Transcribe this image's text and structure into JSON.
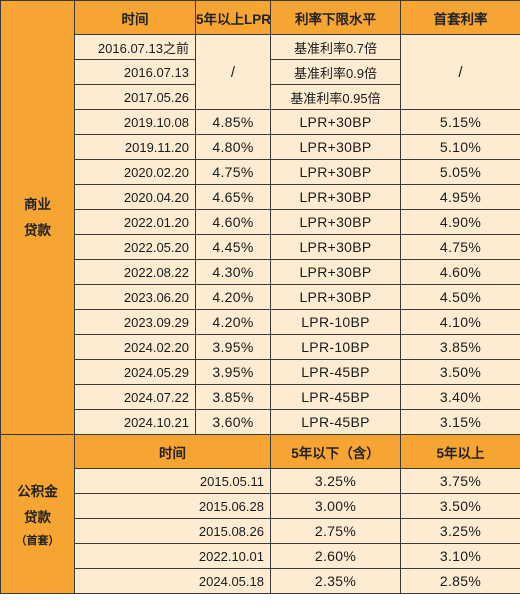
{
  "commercial": {
    "section_line1": "商业",
    "section_line2": "贷款",
    "headers": [
      "时间",
      "5年以上LPR",
      "利率下限水平",
      "首套利率"
    ],
    "early_rows": [
      {
        "date": "2016.07.13之前",
        "floor": "基准利率0.7倍"
      },
      {
        "date": "2016.07.13",
        "floor": "基准利率0.9倍"
      },
      {
        "date": "2017.05.26",
        "floor": "基准利率0.95倍"
      }
    ],
    "merged_slash": "/",
    "rows": [
      {
        "date": "2019.10.08",
        "lpr": "4.85%",
        "floor": "LPR+30BP",
        "first_home": "5.15%"
      },
      {
        "date": "2019.11.20",
        "lpr": "4.80%",
        "floor": "LPR+30BP",
        "first_home": "5.10%"
      },
      {
        "date": "2020.02.20",
        "lpr": "4.75%",
        "floor": "LPR+30BP",
        "first_home": "5.05%"
      },
      {
        "date": "2020.04.20",
        "lpr": "4.65%",
        "floor": "LPR+30BP",
        "first_home": "4.95%"
      },
      {
        "date": "2022.01.20",
        "lpr": "4.60%",
        "floor": "LPR+30BP",
        "first_home": "4.90%"
      },
      {
        "date": "2022.05.20",
        "lpr": "4.45%",
        "floor": "LPR+30BP",
        "first_home": "4.75%"
      },
      {
        "date": "2022.08.22",
        "lpr": "4.30%",
        "floor": "LPR+30BP",
        "first_home": "4.60%"
      },
      {
        "date": "2023.06.20",
        "lpr": "4.20%",
        "floor": "LPR+30BP",
        "first_home": "4.50%"
      },
      {
        "date": "2023.09.29",
        "lpr": "4.20%",
        "floor": "LPR-10BP",
        "first_home": "4.10%"
      },
      {
        "date": "2024.02.20",
        "lpr": "3.95%",
        "floor": "LPR-10BP",
        "first_home": "3.85%"
      },
      {
        "date": "2024.05.29",
        "lpr": "3.95%",
        "floor": "LPR-45BP",
        "first_home": "3.50%"
      },
      {
        "date": "2024.07.22",
        "lpr": "3.85%",
        "floor": "LPR-45BP",
        "first_home": "3.40%"
      },
      {
        "date": "2024.10.21",
        "lpr": "3.60%",
        "floor": "LPR-45BP",
        "first_home": "3.15%"
      }
    ]
  },
  "provident_fund": {
    "section_line1": "公积金",
    "section_line2": "贷款",
    "section_note": "（首套）",
    "headers": [
      "时间",
      "5年以下（含）",
      "5年以上"
    ],
    "rows": [
      {
        "date": "2015.05.11",
        "up_to_5y": "3.25%",
        "over_5y": "3.75%"
      },
      {
        "date": "2015.06.28",
        "up_to_5y": "3.00%",
        "over_5y": "3.50%"
      },
      {
        "date": "2015.08.26",
        "up_to_5y": "2.75%",
        "over_5y": "3.25%"
      },
      {
        "date": "2022.10.01",
        "up_to_5y": "2.60%",
        "over_5y": "3.10%"
      },
      {
        "date": "2024.05.18",
        "up_to_5y": "2.35%",
        "over_5y": "2.85%"
      }
    ]
  }
}
